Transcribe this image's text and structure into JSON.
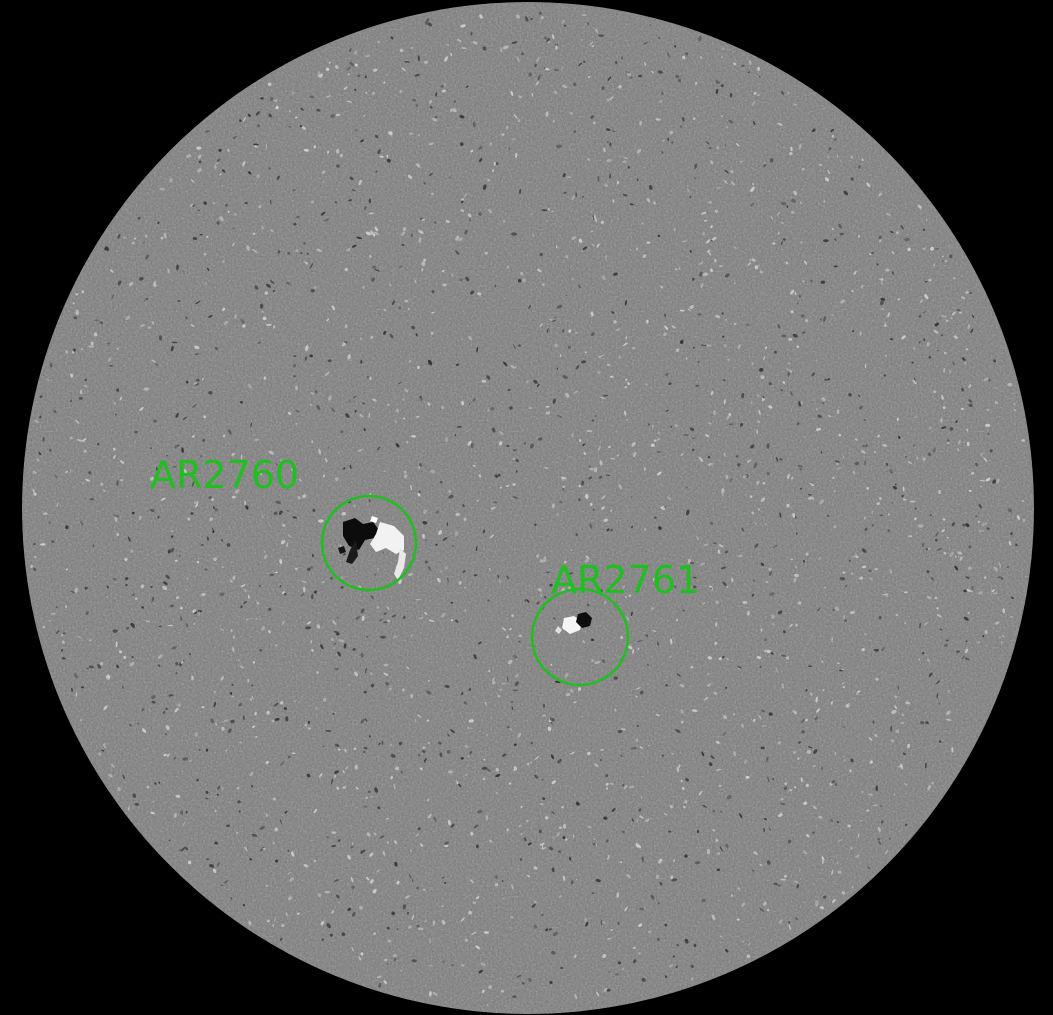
{
  "image": {
    "subject": "solar-magnetogram",
    "background_color": "#000000",
    "disk_color": "#7c7c7c",
    "annotation_color": "#1fbf1f"
  },
  "active_regions": [
    {
      "label": "AR2760"
    },
    {
      "label": "AR2761"
    }
  ]
}
